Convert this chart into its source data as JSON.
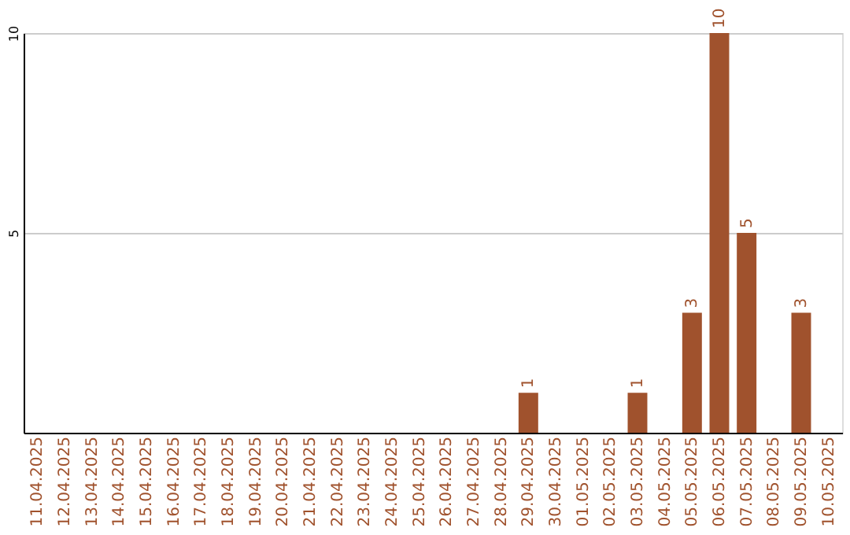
{
  "chart_data": {
    "type": "bar",
    "categories": [
      "11.04.2025",
      "12.04.2025",
      "13.04.2025",
      "14.04.2025",
      "15.04.2025",
      "16.04.2025",
      "17.04.2025",
      "18.04.2025",
      "19.04.2025",
      "20.04.2025",
      "21.04.2025",
      "22.04.2025",
      "23.04.2025",
      "24.04.2025",
      "25.04.2025",
      "26.04.2025",
      "27.04.2025",
      "28.04.2025",
      "29.04.2025",
      "30.04.2025",
      "01.05.2025",
      "02.05.2025",
      "03.05.2025",
      "04.05.2025",
      "05.05.2025",
      "06.05.2025",
      "07.05.2025",
      "08.05.2025",
      "09.05.2025",
      "10.05.2025"
    ],
    "values": [
      0,
      0,
      0,
      0,
      0,
      0,
      0,
      0,
      0,
      0,
      0,
      0,
      0,
      0,
      0,
      0,
      0,
      0,
      1,
      0,
      0,
      0,
      1,
      0,
      3,
      10,
      5,
      0,
      3,
      0
    ],
    "value_labels": [
      null,
      null,
      null,
      null,
      null,
      null,
      null,
      null,
      null,
      null,
      null,
      null,
      null,
      null,
      null,
      null,
      null,
      null,
      "1",
      null,
      null,
      null,
      "1",
      null,
      "3",
      "10",
      "5",
      null,
      "3",
      null
    ],
    "color": "#a0522d",
    "ylim": [
      0,
      10
    ],
    "yticks": [
      5,
      10
    ],
    "grid": "y"
  }
}
